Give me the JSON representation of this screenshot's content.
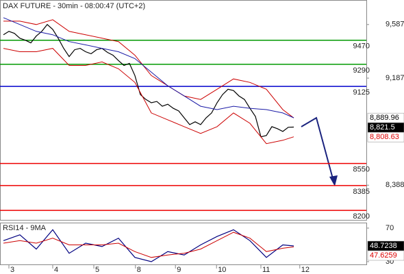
{
  "chart_data": [
    {
      "type": "line",
      "title": "DAX FUTURE - 30min - 08:00:47 (UTC+2)",
      "x": [
        0,
        1,
        2,
        3,
        4,
        5,
        6,
        7,
        8,
        9,
        10,
        11,
        12,
        13,
        14,
        15,
        16,
        17,
        18,
        19,
        20,
        21,
        22,
        23,
        24,
        25,
        26,
        27,
        28,
        29,
        30,
        31,
        32,
        33,
        34,
        35,
        36,
        37,
        38,
        39,
        40,
        41,
        42,
        43,
        44,
        45,
        46,
        47,
        48,
        49,
        50,
        51,
        52,
        53
      ],
      "xlim": [
        -0.625,
        66.25
      ],
      "ylim": [
        8129,
        9765
      ],
      "yticks": [
        {
          "value": 9587,
          "label": "9,587"
        },
        {
          "value": 9187,
          "label": "9,187"
        },
        {
          "value": 8388,
          "label": "8,388"
        }
      ],
      "series": [
        {
          "color": "#000000",
          "x": [
            0,
            1,
            2,
            3,
            4,
            5,
            6,
            7,
            8,
            9,
            10,
            11,
            12,
            13,
            14,
            15,
            16,
            17,
            18,
            19,
            20,
            21,
            22,
            23,
            24,
            25,
            26,
            27,
            28,
            29,
            30,
            31,
            32,
            33,
            34,
            35,
            36,
            37,
            38,
            39,
            40,
            41,
            42,
            43,
            44,
            45,
            46,
            47,
            48,
            49,
            50,
            51,
            52,
            53
          ],
          "values": [
            9511,
            9536,
            9521,
            9485,
            9470,
            9450,
            9501,
            9536,
            9587,
            9551,
            9485,
            9409,
            9348,
            9399,
            9409,
            9384,
            9369,
            9399,
            9409,
            9379,
            9358,
            9318,
            9282,
            9297,
            9206,
            9064,
            9028,
            9003,
            9013,
            8977,
            8992,
            8962,
            8942,
            8891,
            8840,
            8861,
            8840,
            8891,
            8927,
            9003,
            9064,
            9104,
            9094,
            9054,
            9028,
            8962,
            8901,
            8749,
            8759,
            8825,
            8810,
            8789,
            8820,
            8821.5
          ]
        },
        {
          "color": "#cc0000",
          "x": [
            0,
            3,
            6,
            9,
            12,
            15,
            18,
            21,
            24,
            27,
            30,
            33,
            36,
            39,
            42,
            45,
            48,
            51,
            53
          ],
          "values": [
            9612,
            9612,
            9587,
            9623,
            9536,
            9511,
            9485,
            9460,
            9358,
            9206,
            9130,
            9054,
            9028,
            9104,
            9181,
            9155,
            9104,
            8952,
            8889.96
          ]
        },
        {
          "color": "#cc0000",
          "x": [
            0,
            3,
            6,
            9,
            12,
            15,
            18,
            21,
            24,
            27,
            30,
            33,
            36,
            39,
            42,
            45,
            48,
            51,
            53
          ],
          "values": [
            9409,
            9384,
            9384,
            9409,
            9282,
            9282,
            9308,
            9257,
            9155,
            8927,
            8876,
            8825,
            8774,
            8825,
            8927,
            8850,
            8698,
            8723,
            8749
          ]
        },
        {
          "color": "#1a1aa6",
          "x": [
            0,
            3,
            6,
            9,
            12,
            15,
            18,
            21,
            24,
            27,
            30,
            33,
            36,
            39,
            42,
            45,
            48,
            51,
            53
          ],
          "values": [
            9638,
            9587,
            9536,
            9511,
            9460,
            9435,
            9409,
            9384,
            9333,
            9231,
            9130,
            9054,
            8977,
            8952,
            8977,
            8962,
            8952,
            8927,
            8891
          ]
        }
      ],
      "levels": [
        {
          "value": 9470,
          "color": "#009900"
        },
        {
          "value": 9290,
          "color": "#009900"
        },
        {
          "value": 9125,
          "color": "#0000cc"
        },
        {
          "value": 8550,
          "color": "#ee0000"
        },
        {
          "value": 8385,
          "color": "#ee0000"
        },
        {
          "value": 8200,
          "color": "#ee0000"
        }
      ],
      "price_tags": [
        {
          "value": 8889.96,
          "label": "8,889.96"
        },
        {
          "value": 8821.5,
          "label": "8,821.5"
        },
        {
          "value": 8808.63,
          "label": "8,808.63"
        }
      ]
    },
    {
      "type": "line",
      "title": "RSI14 - 9MA",
      "x": [
        0,
        3,
        6,
        9,
        12,
        15,
        18,
        21,
        24,
        27,
        30,
        33,
        36,
        39,
        42,
        45,
        48,
        51,
        53
      ],
      "xlim": [
        -0.625,
        66.25
      ],
      "xticks": [
        {
          "value": 1,
          "label": "3"
        },
        {
          "value": 9,
          "label": "4"
        },
        {
          "value": 16.5,
          "label": "5"
        },
        {
          "value": 24.1,
          "label": "8"
        },
        {
          "value": 31.4,
          "label": "9"
        },
        {
          "value": 38.9,
          "label": "10"
        },
        {
          "value": 47,
          "label": "11"
        },
        {
          "value": 54.1,
          "label": "12"
        }
      ],
      "ylim": [
        26.7,
        75.7
      ],
      "yticks": [
        70,
        30
      ],
      "series": [
        {
          "color": "#000080",
          "values": [
            55,
            62,
            45,
            68,
            40,
            52,
            48,
            58,
            35,
            30,
            42,
            38,
            50,
            60,
            68,
            55,
            35,
            50,
            48.7238
          ]
        },
        {
          "color": "#cc0000",
          "values": [
            52,
            55,
            52,
            58,
            50,
            50,
            50,
            52,
            42,
            35,
            38,
            40,
            45,
            55,
            65,
            58,
            42,
            46,
            47.6259
          ]
        }
      ],
      "price_tags": [
        48.7238,
        47.6259
      ]
    }
  ]
}
